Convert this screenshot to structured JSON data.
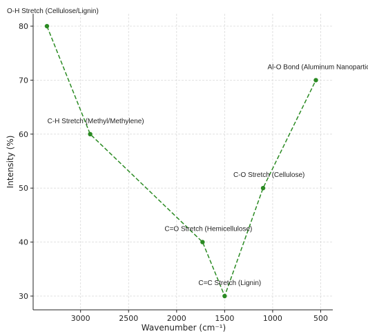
{
  "chart_data": {
    "type": "line",
    "title": "",
    "xlabel": "Wavenumber (cm⁻¹)",
    "ylabel": "Intensity (%)",
    "x_reversed": true,
    "xlim": [
      3350,
      525
    ],
    "ylim": [
      27.5,
      82
    ],
    "xticks": [
      3000,
      2500,
      2000,
      1500,
      1000,
      500
    ],
    "yticks": [
      30,
      40,
      50,
      60,
      70,
      80
    ],
    "grid": true,
    "line_color": "#2a8a22",
    "line_style": "dashed",
    "points": [
      {
        "x": 3350,
        "y": 80,
        "label": "O-H Stretch (Cellulose/Lignin)"
      },
      {
        "x": 2900,
        "y": 60,
        "label": "C-H Stretch (Methyl/Methylene)"
      },
      {
        "x": 1730,
        "y": 40,
        "label": "C=O Stretch (Hemicellulose)"
      },
      {
        "x": 1500,
        "y": 30,
        "label": "C=C Stretch (Lignin)"
      },
      {
        "x": 1100,
        "y": 50,
        "label": "C-O Stretch (Cellulose)"
      },
      {
        "x": 550,
        "y": 70,
        "label": "Al-O Bond (Aluminum Nanoparticles)"
      }
    ]
  }
}
